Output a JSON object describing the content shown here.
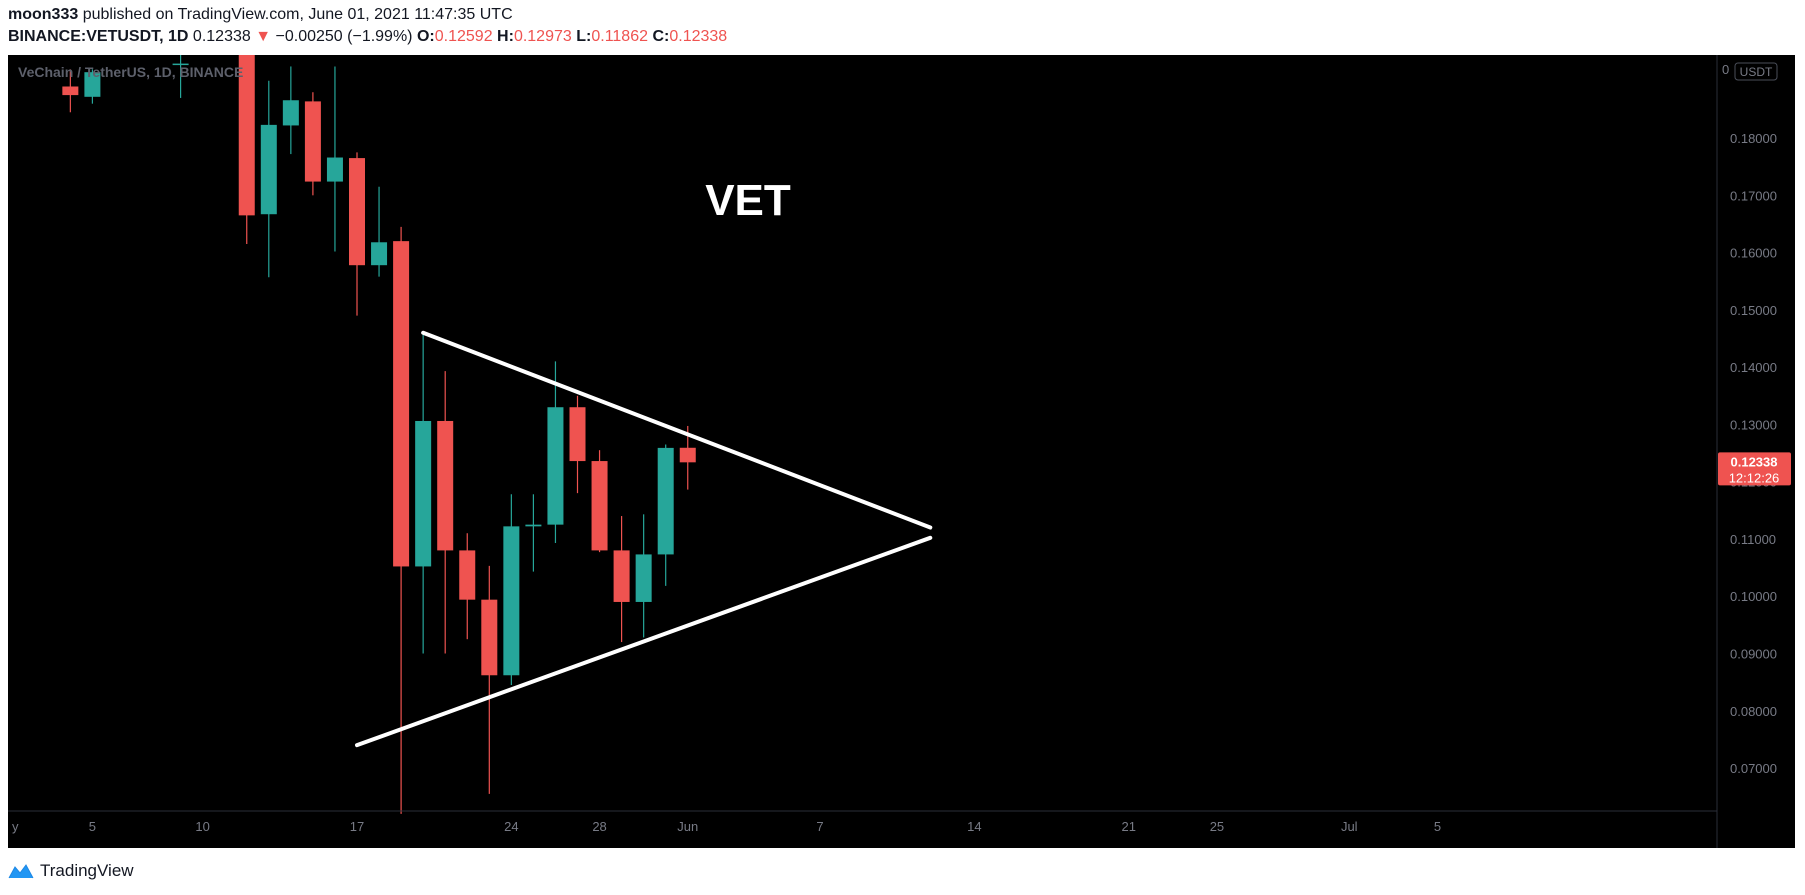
{
  "header": {
    "author": "moon333",
    "published_text": "published on TradingView.com, June 01, 2021 11:47:35 UTC",
    "symbol": "BINANCE:VETUSDT, 1D",
    "last": "0.12338",
    "change_arrow": "▼",
    "change": "−0.00250 (−1.99%)",
    "o_label": "O:",
    "o_value": "0.12592",
    "h_label": "H:",
    "h_value": "0.12973",
    "l_label": "L:",
    "l_value": "0.11862",
    "c_label": "C:",
    "c_value": "0.12338"
  },
  "footer": {
    "brand": "TradingView"
  },
  "colors": {
    "background": "#000000",
    "up": "#26a69a",
    "down": "#ef5350",
    "axis_text": "#787b86",
    "pattern_lines": "#ffffff",
    "price_label_bg": "#ef5350"
  },
  "chart_data": {
    "type": "candlestick",
    "title": "VeChain / TetherUS, 1D, BINANCE",
    "annotation": "VET",
    "currency_button": "USDT",
    "price_label": "0.12338",
    "countdown_label": "12:12:26",
    "ylim": [
      0.0625,
      0.1945
    ],
    "y_ticks": [
      "0.07000",
      "0.08000",
      "0.09000",
      "0.10000",
      "0.11000",
      "0.12000",
      "0.13000",
      "0.14000",
      "0.15000",
      "0.16000",
      "0.17000",
      "0.18000"
    ],
    "y_tick_values": [
      0.07,
      0.08,
      0.09,
      0.1,
      0.11,
      0.12,
      0.13,
      0.14,
      0.15,
      0.16,
      0.17,
      0.18
    ],
    "top_tick_text": "0",
    "x_ticks": [
      {
        "label": "y",
        "day": -13
      },
      {
        "label": "5",
        "day": -12
      },
      {
        "label": "10",
        "day": -7
      },
      {
        "label": "17",
        "day": 0
      },
      {
        "label": "24",
        "day": 7
      },
      {
        "label": "28",
        "day": 11
      },
      {
        "label": "Jun",
        "day": 15
      },
      {
        "label": "7",
        "day": 21
      },
      {
        "label": "14",
        "day": 28
      },
      {
        "label": "21",
        "day": 35
      },
      {
        "label": "25",
        "day": 39
      },
      {
        "label": "Jul",
        "day": 45
      },
      {
        "label": "5",
        "day": 49
      }
    ],
    "x_unit": "days since May 17, 2021",
    "candles": [
      {
        "date": "2021-05-04",
        "day": -13,
        "open": 0.189,
        "high": 0.192,
        "low": 0.1845,
        "close": 0.1875
      },
      {
        "date": "2021-05-05",
        "day": -12,
        "open": 0.1872,
        "high": 0.192,
        "low": 0.186,
        "close": 0.1915
      },
      {
        "date": "2021-05-09",
        "day": -8,
        "open": 0.193,
        "high": 0.1945,
        "low": 0.187,
        "close": 0.193
      },
      {
        "date": "2021-05-12",
        "day": -5,
        "open": 0.199,
        "high": 0.199,
        "low": 0.1615,
        "close": 0.1665
      },
      {
        "date": "2021-05-13",
        "day": -4,
        "open": 0.1667,
        "high": 0.19,
        "low": 0.1557,
        "close": 0.1823
      },
      {
        "date": "2021-05-14",
        "day": -3,
        "open": 0.1822,
        "high": 0.1925,
        "low": 0.1772,
        "close": 0.1866
      },
      {
        "date": "2021-05-15",
        "day": -2,
        "open": 0.1864,
        "high": 0.188,
        "low": 0.17,
        "close": 0.1724
      },
      {
        "date": "2021-05-16",
        "day": -1,
        "open": 0.1724,
        "high": 0.1925,
        "low": 0.1602,
        "close": 0.1766
      },
      {
        "date": "2021-05-17",
        "day": 0,
        "open": 0.1765,
        "high": 0.1775,
        "low": 0.149,
        "close": 0.1578
      },
      {
        "date": "2021-05-18",
        "day": 1,
        "open": 0.1578,
        "high": 0.1715,
        "low": 0.1558,
        "close": 0.1618
      },
      {
        "date": "2021-05-19",
        "day": 2,
        "open": 0.162,
        "high": 0.1645,
        "low": 0.062,
        "close": 0.1052
      },
      {
        "date": "2021-05-20",
        "day": 3,
        "open": 0.1052,
        "high": 0.146,
        "low": 0.09,
        "close": 0.1306
      },
      {
        "date": "2021-05-21",
        "day": 4,
        "open": 0.1306,
        "high": 0.1393,
        "low": 0.09,
        "close": 0.108
      },
      {
        "date": "2021-05-22",
        "day": 5,
        "open": 0.108,
        "high": 0.111,
        "low": 0.0925,
        "close": 0.0994
      },
      {
        "date": "2021-05-23",
        "day": 6,
        "open": 0.0994,
        "high": 0.1053,
        "low": 0.0655,
        "close": 0.0862
      },
      {
        "date": "2021-05-24",
        "day": 7,
        "open": 0.0862,
        "high": 0.1178,
        "low": 0.0845,
        "close": 0.1122
      },
      {
        "date": "2021-05-25",
        "day": 8,
        "open": 0.1122,
        "high": 0.1178,
        "low": 0.1043,
        "close": 0.1125
      },
      {
        "date": "2021-05-26",
        "day": 9,
        "open": 0.1125,
        "high": 0.141,
        "low": 0.1093,
        "close": 0.133
      },
      {
        "date": "2021-05-27",
        "day": 10,
        "open": 0.133,
        "high": 0.135,
        "low": 0.118,
        "close": 0.1236
      },
      {
        "date": "2021-05-28",
        "day": 11,
        "open": 0.1236,
        "high": 0.1255,
        "low": 0.1077,
        "close": 0.108
      },
      {
        "date": "2021-05-29",
        "day": 12,
        "open": 0.108,
        "high": 0.114,
        "low": 0.092,
        "close": 0.099
      },
      {
        "date": "2021-05-30",
        "day": 13,
        "open": 0.099,
        "high": 0.1143,
        "low": 0.0928,
        "close": 0.1073
      },
      {
        "date": "2021-05-31",
        "day": 14,
        "open": 0.1073,
        "high": 0.1265,
        "low": 0.1018,
        "close": 0.1259
      },
      {
        "date": "2021-06-01",
        "day": 15,
        "open": 0.12592,
        "high": 0.12973,
        "low": 0.11862,
        "close": 0.12338
      }
    ],
    "trendlines": [
      {
        "name": "upper",
        "from": {
          "day": 3,
          "price": 0.146
        },
        "to": {
          "day": 26,
          "price": 0.112
        }
      },
      {
        "name": "lower",
        "from": {
          "day": 0,
          "price": 0.074
        },
        "to": {
          "day": 26,
          "price": 0.1102
        }
      }
    ]
  }
}
